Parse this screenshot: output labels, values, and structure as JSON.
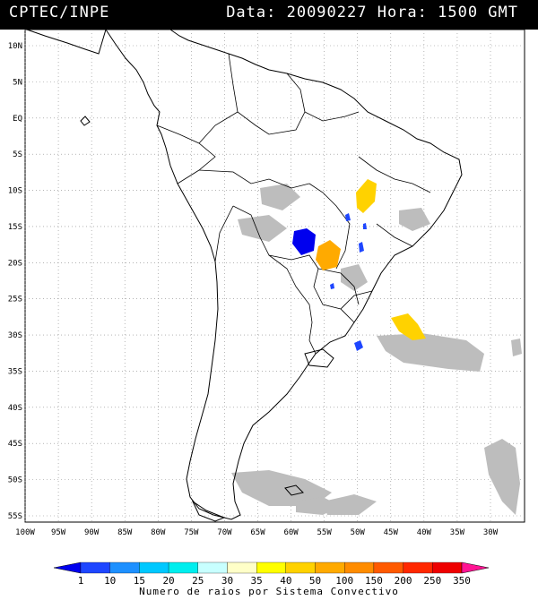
{
  "header": {
    "source": "CPTEC/INPE",
    "datetime": "Data: 20090227 Hora: 1500 GMT"
  },
  "lat_labels": [
    "10N",
    "5N",
    "EQ",
    "5S",
    "10S",
    "15S",
    "20S",
    "25S",
    "30S",
    "35S",
    "40S",
    "45S",
    "50S",
    "55S"
  ],
  "lon_labels": [
    "100W",
    "95W",
    "90W",
    "85W",
    "80W",
    "75W",
    "70W",
    "65W",
    "60W",
    "55W",
    "50W",
    "45W",
    "40W",
    "35W",
    "30W"
  ],
  "colorbar": {
    "values": [
      "1",
      "10",
      "15",
      "20",
      "25",
      "30",
      "35",
      "40",
      "50",
      "100",
      "150",
      "200",
      "250",
      "350"
    ],
    "colors": [
      "#0000ee",
      "#1e46ff",
      "#1e90ff",
      "#00c8ff",
      "#00eeee",
      "#c8ffff",
      "#ffffc8",
      "#ffff00",
      "#ffd200",
      "#ffaa00",
      "#ff8c00",
      "#ff5a00",
      "#ff2800",
      "#ee0000",
      "#ff1493"
    ],
    "caption": "Numero de raios por Sistema Convectivo"
  },
  "colors": {
    "cloud_gray": "#bdbdbd",
    "blue_system": "#0000ee",
    "light_blue_system": "#1e46ff",
    "orange_system": "#ffaa00",
    "yellow_system": "#ffd200"
  }
}
